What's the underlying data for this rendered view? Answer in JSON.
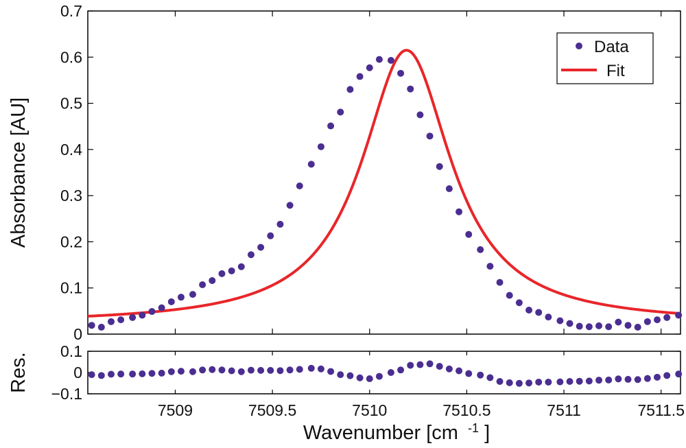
{
  "colors": {
    "data": "#4b2e91",
    "fit": "#e8262a",
    "axis": "#000000"
  },
  "legend": {
    "data_label": "Data",
    "fit_label": "Fit",
    "placement": "top-right"
  },
  "xlabel_main": "Wavenumber [cm",
  "xlabel_sup": "-1",
  "xlabel_close": "]",
  "chart_data": [
    {
      "type": "scatter+line",
      "title": "",
      "ylabel": "Absorbance [AU]",
      "xlim": [
        7508.55,
        7511.6
      ],
      "ylim": [
        0,
        0.7
      ],
      "yticks": [
        0,
        0.1,
        0.2,
        0.3,
        0.4,
        0.5,
        0.6,
        0.7
      ],
      "ytick_labels": [
        "0",
        "0.1",
        "0.2",
        "0.3",
        "0.4",
        "0.5",
        "0.6",
        "0.7"
      ],
      "fit": {
        "name": "Fit",
        "model": "lorentzian",
        "center": 7510.19,
        "hwhm": 0.28,
        "amplitude": 0.593,
        "baseline": 0.022
      },
      "series": [
        {
          "name": "Data",
          "x": [
            7508.57,
            7508.62,
            7508.67,
            7508.72,
            7508.78,
            7508.83,
            7508.88,
            7508.93,
            7508.98,
            7509.03,
            7509.09,
            7509.14,
            7509.19,
            7509.24,
            7509.29,
            7509.34,
            7509.39,
            7509.44,
            7509.49,
            7509.54,
            7509.59,
            7509.64,
            7509.7,
            7509.75,
            7509.8,
            7509.85,
            7509.9,
            7509.95,
            7510.0,
            7510.05,
            7510.11,
            7510.16,
            7510.21,
            7510.26,
            7510.31,
            7510.36,
            7510.41,
            7510.46,
            7510.51,
            7510.57,
            7510.62,
            7510.67,
            7510.72,
            7510.77,
            7510.82,
            7510.87,
            7510.92,
            7510.98,
            7511.03,
            7511.08,
            7511.13,
            7511.18,
            7511.23,
            7511.28,
            7511.33,
            7511.38,
            7511.43,
            7511.48,
            7511.53,
            7511.59
          ],
          "y": [
            0.019,
            0.015,
            0.027,
            0.031,
            0.036,
            0.041,
            0.049,
            0.057,
            0.07,
            0.08,
            0.086,
            0.107,
            0.116,
            0.131,
            0.137,
            0.146,
            0.172,
            0.188,
            0.213,
            0.238,
            0.279,
            0.321,
            0.368,
            0.406,
            0.451,
            0.481,
            0.53,
            0.558,
            0.577,
            0.595,
            0.593,
            0.565,
            0.531,
            0.475,
            0.429,
            0.363,
            0.315,
            0.265,
            0.216,
            0.183,
            0.147,
            0.112,
            0.084,
            0.068,
            0.052,
            0.047,
            0.037,
            0.029,
            0.023,
            0.017,
            0.016,
            0.018,
            0.016,
            0.026,
            0.019,
            0.015,
            0.027,
            0.031,
            0.036,
            0.041
          ]
        }
      ]
    },
    {
      "type": "scatter",
      "title": "",
      "ylabel": "Res.",
      "xlim": [
        7508.55,
        7511.6
      ],
      "ylim": [
        -0.1,
        0.1
      ],
      "yticks": [
        -0.1,
        0,
        0.1
      ],
      "ytick_labels": [
        "−0.1",
        "0",
        "0.1"
      ],
      "xticks": [
        7509,
        7509.5,
        7510,
        7510.5,
        7511,
        7511.5
      ],
      "xtick_labels": [
        "7509",
        "7509.5",
        "7510",
        "7510.5",
        "7511",
        "7511.5"
      ],
      "series": [
        {
          "name": "Residuals",
          "x": [
            7508.57,
            7508.62,
            7508.67,
            7508.72,
            7508.78,
            7508.83,
            7508.88,
            7508.93,
            7508.98,
            7509.03,
            7509.09,
            7509.14,
            7509.19,
            7509.24,
            7509.29,
            7509.34,
            7509.39,
            7509.44,
            7509.49,
            7509.54,
            7509.59,
            7509.64,
            7509.7,
            7509.75,
            7509.8,
            7509.85,
            7509.9,
            7509.95,
            7510.0,
            7510.05,
            7510.11,
            7510.16,
            7510.21,
            7510.26,
            7510.31,
            7510.36,
            7510.41,
            7510.46,
            7510.51,
            7510.57,
            7510.62,
            7510.67,
            7510.72,
            7510.77,
            7510.82,
            7510.87,
            7510.92,
            7510.98,
            7511.03,
            7511.08,
            7511.13,
            7511.18,
            7511.23,
            7511.28,
            7511.33,
            7511.38,
            7511.43,
            7511.48,
            7511.53,
            7511.59
          ],
          "y": [
            -0.01,
            -0.014,
            -0.008,
            -0.007,
            -0.007,
            -0.006,
            -0.004,
            -0.003,
            0.004,
            0.006,
            0.004,
            0.012,
            0.014,
            0.012,
            0.008,
            0.004,
            0.011,
            0.01,
            0.01,
            0.009,
            0.012,
            0.015,
            0.02,
            0.017,
            0.005,
            -0.01,
            -0.015,
            -0.025,
            -0.029,
            -0.018,
            0.0,
            0.012,
            0.034,
            0.037,
            0.041,
            0.029,
            0.017,
            0.008,
            -0.005,
            -0.012,
            -0.024,
            -0.042,
            -0.048,
            -0.051,
            -0.049,
            -0.045,
            -0.045,
            -0.044,
            -0.042,
            -0.041,
            -0.04,
            -0.036,
            -0.035,
            -0.03,
            -0.032,
            -0.033,
            -0.028,
            -0.022,
            -0.014,
            -0.007
          ]
        }
      ]
    }
  ]
}
